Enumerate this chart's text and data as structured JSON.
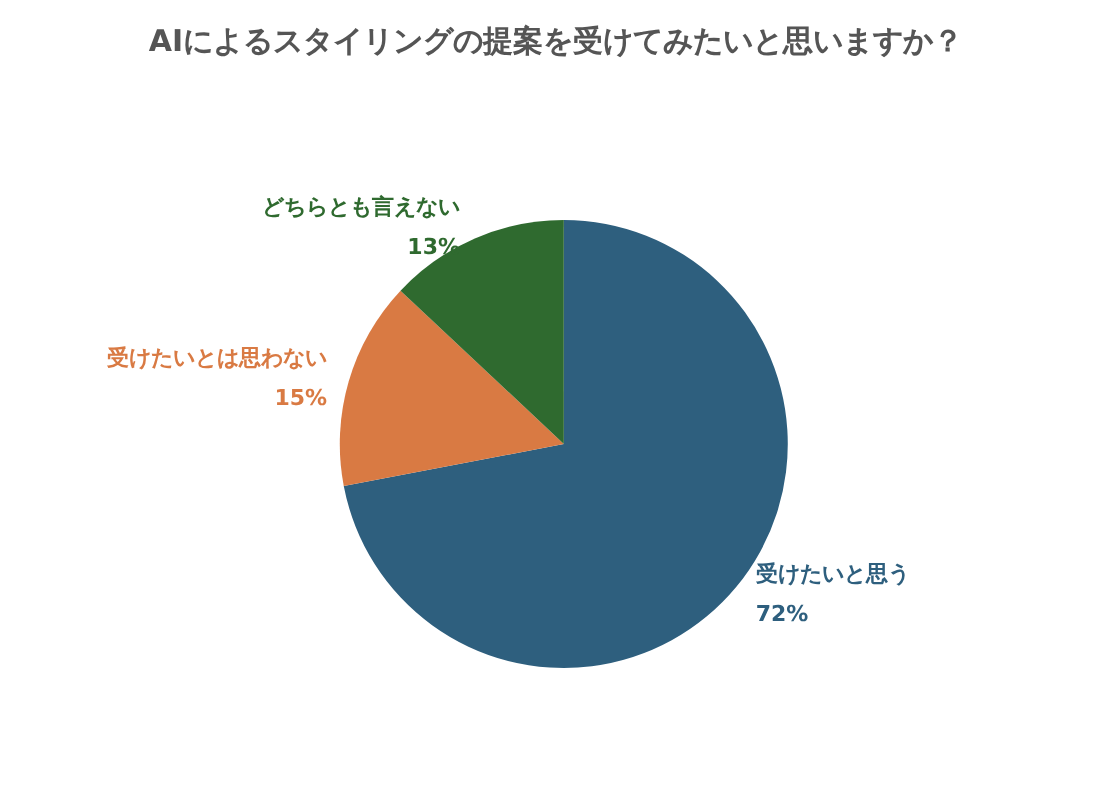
{
  "chart_data": {
    "type": "pie",
    "title": "AIによるスタイリングの提案を受けてみたいと思いますか？",
    "categories": [
      "受けたいと思う",
      "受けたいとは思わない",
      "どちらとも言えない"
    ],
    "values": [
      72,
      15,
      13
    ],
    "colors": [
      "#2e5f7e",
      "#d97a43",
      "#2f6a2f"
    ],
    "value_labels": [
      "72%",
      "15%",
      "13%"
    ],
    "legend": false
  }
}
